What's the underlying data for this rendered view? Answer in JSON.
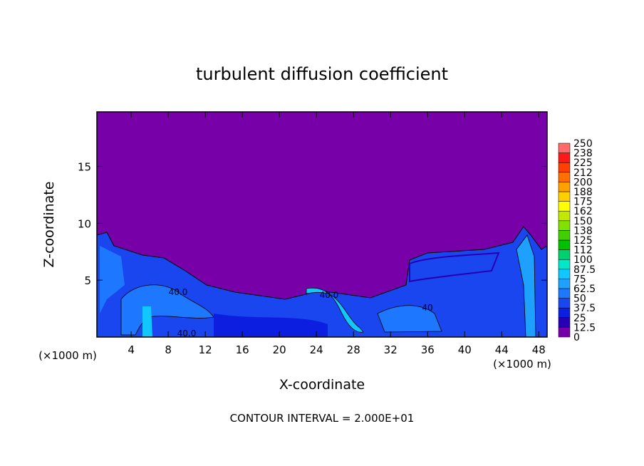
{
  "chart_data": {
    "type": "contour",
    "title": "turbulent diffusion coefficient",
    "xlabel": "X-coordinate",
    "ylabel": "Z-coordinate",
    "x_unit": "(×1000 m)",
    "x_unit_right": "(×1000 m)",
    "footer": "CONTOUR INTERVAL = 2.000E+01",
    "xlim": [
      0.3,
      48.9
    ],
    "xticks": [
      4,
      8,
      12,
      16,
      20,
      24,
      28,
      32,
      36,
      40,
      44,
      48
    ],
    "ylim": [
      0,
      19.8
    ],
    "yticks": [
      5,
      10,
      15
    ],
    "levels": [
      0,
      12.5,
      25,
      37.5,
      50,
      62.5,
      75,
      87.5,
      100,
      {
        "value": 112.5,
        "label": "112"
      },
      125,
      {
        "value": 137.5,
        "label": "138"
      },
      150,
      {
        "value": 162.5,
        "label": "162"
      },
      175,
      {
        "value": 187.5,
        "label": "188"
      },
      200,
      {
        "value": 212.5,
        "label": "212"
      },
      225,
      {
        "value": 237.5,
        "label": "238"
      },
      250
    ],
    "colors": [
      "#7800a8",
      "#2800b4",
      "#0c1ee0",
      "#1a46f0",
      "#1e78ff",
      "#1ea0ff",
      "#10c8ff",
      "#00e8c8",
      "#00d070",
      "#00c000",
      "#40d000",
      "#80e000",
      "#c0e800",
      "#ffff00",
      "#ffd000",
      "#ffa000",
      "#ff7000",
      "#ff4000",
      "#ff1818",
      "#ff6a6a"
    ],
    "contour_labels": [
      {
        "value": 40,
        "label": "40.0"
      },
      {
        "value": 40,
        "label": "40.0"
      },
      {
        "value": 40,
        "label": "40.0"
      },
      {
        "value": 40,
        "label": "40"
      }
    ]
  }
}
